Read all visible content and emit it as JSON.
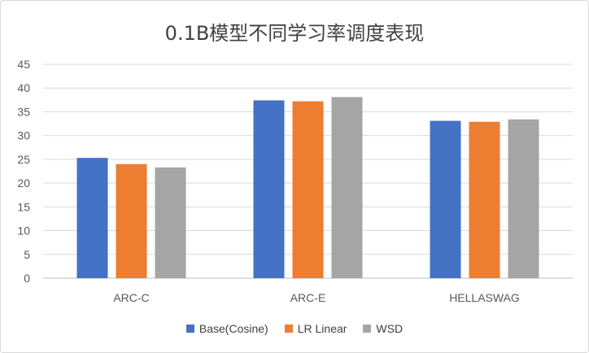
{
  "chart_data": {
    "type": "bar",
    "title": "0.1B模型不同学习率调度表现",
    "categories": [
      "ARC-C",
      "ARC-E",
      "HELLASWAG"
    ],
    "series": [
      {
        "name": "Base(Cosine)",
        "color": "#4472C4",
        "values": [
          25.3,
          37.4,
          33.1
        ]
      },
      {
        "name": "LR Linear",
        "color": "#ED7D31",
        "values": [
          24.0,
          37.2,
          32.9
        ]
      },
      {
        "name": "WSD",
        "color": "#A5A5A5",
        "values": [
          23.3,
          38.1,
          33.4
        ]
      }
    ],
    "ylim": [
      0,
      45
    ],
    "yticks": [
      0,
      5,
      10,
      15,
      20,
      25,
      30,
      35,
      40,
      45
    ],
    "grid": true,
    "legend_position": "bottom"
  }
}
